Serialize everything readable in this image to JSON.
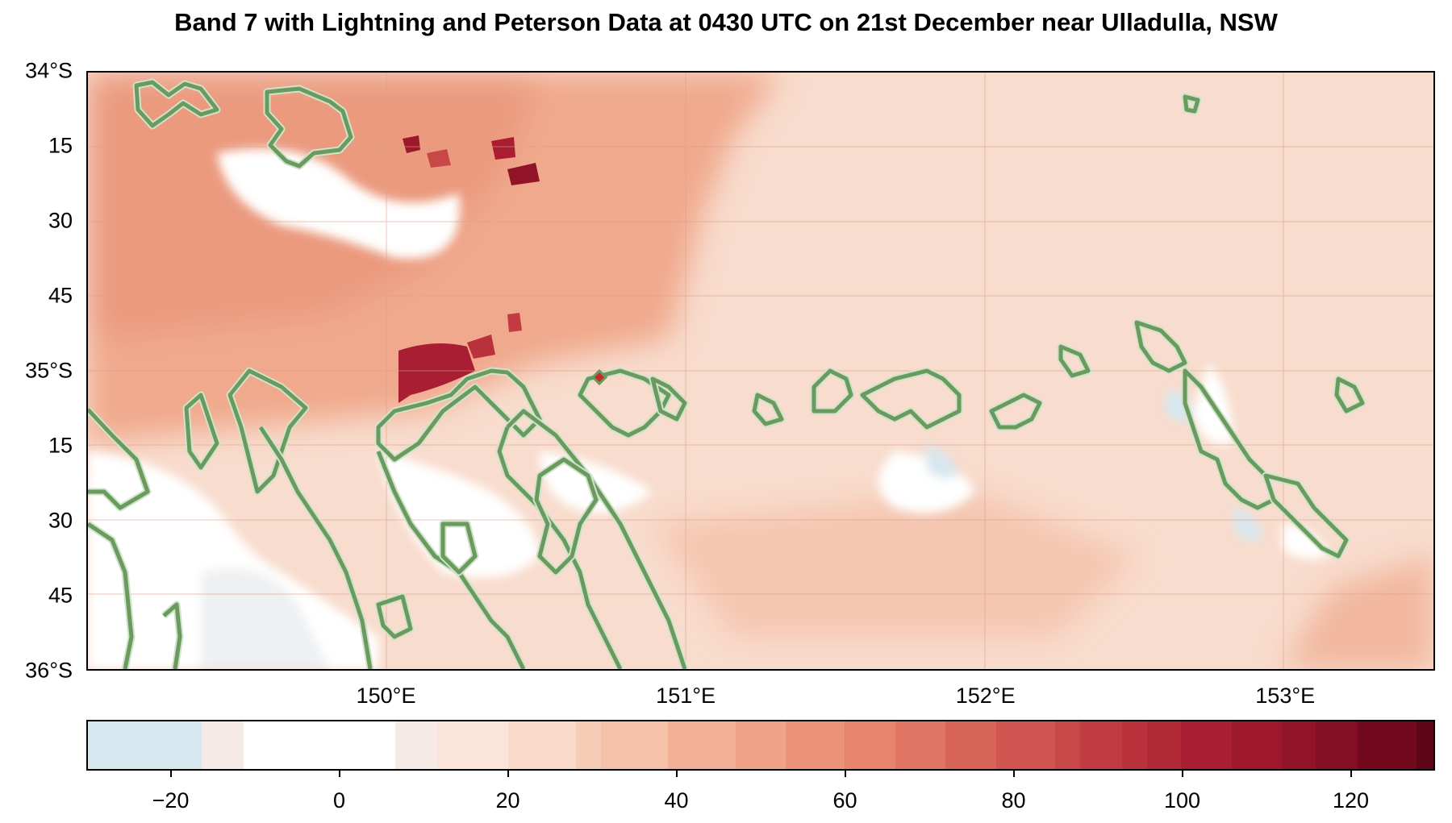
{
  "title": "Band 7 with Lightning and Peterson Data at 0430 UTC on 21st December near Ulladulla, NSW",
  "map": {
    "lon_range": [
      149.0,
      153.5
    ],
    "lat_range": [
      -36.0,
      -34.0
    ],
    "lat_labels": [
      {
        "lat": -34.0,
        "text": "34°S"
      },
      {
        "lat": -34.25,
        "text": "15"
      },
      {
        "lat": -34.5,
        "text": "30"
      },
      {
        "lat": -34.75,
        "text": "45"
      },
      {
        "lat": -35.0,
        "text": "35°S"
      },
      {
        "lat": -35.25,
        "text": "15"
      },
      {
        "lat": -35.5,
        "text": "30"
      },
      {
        "lat": -35.75,
        "text": "45"
      },
      {
        "lat": -36.0,
        "text": "36°S"
      }
    ],
    "lon_labels": [
      {
        "lon": 150,
        "text": "150°E"
      },
      {
        "lon": 151,
        "text": "151°E"
      },
      {
        "lon": 152,
        "text": "152°E"
      },
      {
        "lon": 153,
        "text": "153°E"
      }
    ],
    "contour_color": "#6a9a5e",
    "lightning_color": "#c62a2a"
  },
  "colorbar": {
    "range": [
      -30,
      130
    ],
    "ticks": [
      {
        "value": -20,
        "text": "−20"
      },
      {
        "value": 0,
        "text": "0"
      },
      {
        "value": 20,
        "text": "20"
      },
      {
        "value": 40,
        "text": "40"
      },
      {
        "value": 60,
        "text": "60"
      },
      {
        "value": 80,
        "text": "80"
      },
      {
        "value": 100,
        "text": "100"
      },
      {
        "value": 120,
        "text": "120"
      }
    ],
    "segments": [
      {
        "from": -30,
        "to": -16.5,
        "color": "#d6e7ef"
      },
      {
        "from": -16.5,
        "to": -11.5,
        "color": "#f5eae6"
      },
      {
        "from": -11.5,
        "to": 6.5,
        "color": "#ffffff"
      },
      {
        "from": 6.5,
        "to": 11.5,
        "color": "#f5eae6"
      },
      {
        "from": 11.5,
        "to": 20,
        "color": "#fbe5da"
      },
      {
        "from": 20,
        "to": 28,
        "color": "#f9d9c9"
      },
      {
        "from": 28,
        "to": 31,
        "color": "#f7ccb7"
      },
      {
        "from": 31,
        "to": 39,
        "color": "#f5c1a8"
      },
      {
        "from": 39,
        "to": 47,
        "color": "#f2b095"
      },
      {
        "from": 47,
        "to": 53,
        "color": "#f0a386"
      },
      {
        "from": 53,
        "to": 60,
        "color": "#eb9379"
      },
      {
        "from": 60,
        "to": 66,
        "color": "#e6846c"
      },
      {
        "from": 66,
        "to": 72,
        "color": "#e07663"
      },
      {
        "from": 72,
        "to": 78,
        "color": "#d96558"
      },
      {
        "from": 78,
        "to": 85,
        "color": "#d05550"
      },
      {
        "from": 85,
        "to": 88,
        "color": "#c84848"
      },
      {
        "from": 88,
        "to": 93,
        "color": "#c03b42"
      },
      {
        "from": 93,
        "to": 96,
        "color": "#b8313b"
      },
      {
        "from": 96,
        "to": 100,
        "color": "#b02937"
      },
      {
        "from": 100,
        "to": 106,
        "color": "#a91e32"
      },
      {
        "from": 106,
        "to": 112,
        "color": "#9e182c"
      },
      {
        "from": 112,
        "to": 116,
        "color": "#911327"
      },
      {
        "from": 116,
        "to": 121,
        "color": "#840f24"
      },
      {
        "from": 121,
        "to": 128,
        "color": "#72091d"
      },
      {
        "from": 128,
        "to": 130,
        "color": "#5e0618"
      }
    ]
  }
}
